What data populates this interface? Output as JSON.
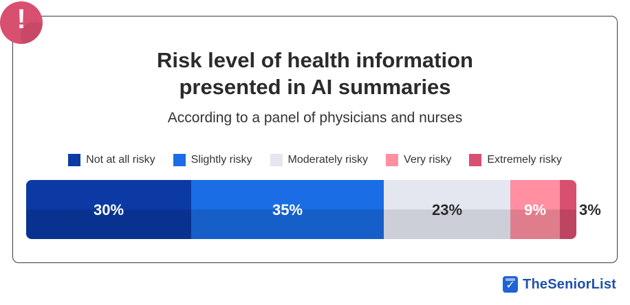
{
  "badge": {
    "mark": "!",
    "icon": "alert-exclamation-icon",
    "color": "#d94f70"
  },
  "chart_data": {
    "type": "bar",
    "orientation": "horizontal-stacked-100",
    "title_line1": "Risk level of health information",
    "title_line2": "presented in AI summaries",
    "subtitle": "According to a panel of physicians and nurses",
    "legend_position": "top",
    "series": [
      {
        "name": "Not at all risky",
        "value": 30,
        "label": "30%",
        "color": "#0b3aa4",
        "label_color": "#ffffff"
      },
      {
        "name": "Slightly risky",
        "value": 35,
        "label": "35%",
        "color": "#1a6de4",
        "label_color": "#ffffff"
      },
      {
        "name": "Moderately risky",
        "value": 23,
        "label": "23%",
        "color": "#e4e7f0",
        "label_color": "#2b2b2b"
      },
      {
        "name": "Very risky",
        "value": 9,
        "label": "9%",
        "color": "#ff8fa1",
        "label_color": "#ffffff"
      },
      {
        "name": "Extremely risky",
        "value": 3,
        "label": "3%",
        "color": "#d94f70",
        "label_color": "#2b2b2b"
      }
    ],
    "total": 100
  },
  "brand": {
    "name": "TheSeniorList",
    "icon": "clipboard-check-icon",
    "check": "✓"
  }
}
